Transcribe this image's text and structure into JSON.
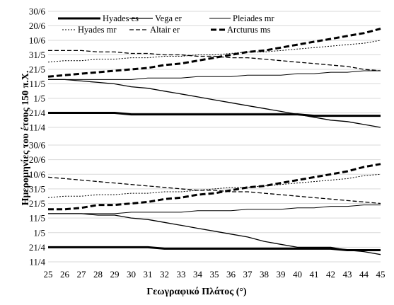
{
  "chart_data": {
    "type": "line",
    "xlabel": "Γεωγραφικό Πλάτος (°)",
    "ylabel": "Ημερομηνίες του έτους 150 π.Χ.",
    "x_ticks": [
      25,
      26,
      27,
      28,
      29,
      30,
      31,
      32,
      33,
      34,
      35,
      36,
      37,
      38,
      39,
      40,
      41,
      42,
      43,
      44,
      45
    ],
    "y_ticks": [
      "30/6",
      "20/6",
      "10/6",
      "31/5",
      "21/5",
      "11/5",
      "1/5",
      "21/4",
      "11/4"
    ],
    "ylim": [
      "11/4",
      "30/6"
    ],
    "grid": true,
    "legend_position": "top",
    "series_styles": {
      "Hyades es": {
        "width": 3.0,
        "dash": ""
      },
      "Vega er": {
        "width": 1.3,
        "dash": ""
      },
      "Pleiades mr": {
        "width": 1.0,
        "dash": ""
      },
      "Hyades mr": {
        "width": 1.0,
        "dash": "2,2"
      },
      "Altair er": {
        "width": 1.3,
        "dash": "6,3"
      },
      "Arcturus ms": {
        "width": 3.0,
        "dash": "8,4"
      }
    },
    "panels": [
      {
        "legend": [
          "Hyades es",
          "Vega er",
          "Pleiades mr",
          "Hyades mr",
          "Altair er",
          "Arcturus ms"
        ],
        "x": [
          25,
          26,
          27,
          28,
          29,
          30,
          31,
          32,
          33,
          34,
          35,
          36,
          37,
          38,
          39,
          40,
          41,
          42,
          43,
          44,
          45
        ],
        "series": [
          {
            "name": "Hyades es",
            "values": [
              "21/4",
              "21/4",
              "21/4",
              "21/4",
              "21/4",
              "20/4",
              "20/4",
              "20/4",
              "20/4",
              "20/4",
              "20/4",
              "20/4",
              "20/4",
              "20/4",
              "20/4",
              "20/4",
              "19/4",
              "19/4",
              "19/4",
              "19/4",
              "19/4"
            ]
          },
          {
            "name": "Vega er",
            "values": [
              "14/5",
              "14/5",
              "13/5",
              "12/5",
              "11/5",
              "9/5",
              "8/5",
              "6/5",
              "4/5",
              "2/5",
              "30/4",
              "28/4",
              "26/4",
              "24/4",
              "22/4",
              "20/4",
              "18/4",
              "16/4",
              "15/4",
              "13/4",
              "11/4"
            ]
          },
          {
            "name": "Pleiades mr",
            "values": [
              "14/5",
              "14/5",
              "14/5",
              "14/5",
              "14/5",
              "14/5",
              "15/5",
              "15/5",
              "15/5",
              "16/5",
              "16/5",
              "16/5",
              "17/5",
              "17/5",
              "17/5",
              "18/5",
              "18/5",
              "19/5",
              "19/5",
              "20/5",
              "20/5"
            ]
          },
          {
            "name": "Hyades mr",
            "values": [
              "26/5",
              "27/5",
              "27/5",
              "28/5",
              "28/5",
              "29/5",
              "29/5",
              "30/5",
              "30/5",
              "31/5",
              "31/5",
              "1/6",
              "2/6",
              "2/6",
              "3/6",
              "4/6",
              "5/6",
              "6/6",
              "7/6",
              "8/6",
              "10/6"
            ]
          },
          {
            "name": "Altair er",
            "values": [
              "3/6",
              "3/6",
              "3/6",
              "2/6",
              "2/6",
              "1/6",
              "1/6",
              "31/5",
              "31/5",
              "30/5",
              "30/5",
              "29/5",
              "29/5",
              "28/5",
              "27/5",
              "26/5",
              "25/5",
              "24/5",
              "23/5",
              "21/5",
              "20/5"
            ]
          },
          {
            "name": "Arcturus ms",
            "values": [
              "16/5",
              "17/5",
              "18/5",
              "19/5",
              "20/5",
              "21/5",
              "22/5",
              "24/5",
              "25/5",
              "27/5",
              "29/5",
              "31/5",
              "2/6",
              "3/6",
              "5/6",
              "7/6",
              "9/6",
              "11/6",
              "13/6",
              "15/6",
              "18/6"
            ]
          }
        ]
      },
      {
        "x": [
          25,
          26,
          27,
          28,
          29,
          30,
          31,
          32,
          33,
          34,
          35,
          36,
          37,
          38,
          39,
          40,
          41,
          42,
          43,
          44,
          45
        ],
        "series": [
          {
            "name": "Hyades es",
            "values": [
              "21/4",
              "21/4",
              "21/4",
              "21/4",
              "21/4",
              "21/4",
              "21/4",
              "20/4",
              "20/4",
              "20/4",
              "20/4",
              "20/4",
              "20/4",
              "20/4",
              "20/4",
              "20/4",
              "20/4",
              "20/4",
              "19/4",
              "19/4",
              "19/4"
            ]
          },
          {
            "name": "Vega er",
            "values": [
              "14/5",
              "14/5",
              "14/5",
              "13/5",
              "13/5",
              "11/5",
              "10/5",
              "8/5",
              "6/5",
              "4/5",
              "2/5",
              "30/4",
              "28/4",
              "25/4",
              "23/4",
              "21/4",
              "21/4",
              "21/4",
              "19/4",
              "18/4",
              "16/4"
            ]
          },
          {
            "name": "Pleiades mr",
            "values": [
              "14/5",
              "14/5",
              "14/5",
              "14/5",
              "14/5",
              "15/5",
              "15/5",
              "15/5",
              "15/5",
              "16/5",
              "16/5",
              "16/5",
              "17/5",
              "17/5",
              "17/5",
              "18/5",
              "18/5",
              "19/5",
              "19/5",
              "20/5",
              "20/5"
            ]
          },
          {
            "name": "Hyades mr",
            "values": [
              "25/5",
              "26/5",
              "26/5",
              "27/5",
              "27/5",
              "28/5",
              "28/5",
              "29/5",
              "29/5",
              "30/5",
              "31/5",
              "1/6",
              "1/6",
              "2/6",
              "3/6",
              "4/6",
              "5/6",
              "6/6",
              "7/6",
              "9/6",
              "10/6"
            ]
          },
          {
            "name": "Altair er",
            "values": [
              "8/6",
              "7/6",
              "6/6",
              "5/6",
              "4/6",
              "3/6",
              "2/6",
              "1/6",
              "31/5",
              "30/5",
              "30/5",
              "29/5",
              "29/5",
              "28/5",
              "27/5",
              "26/5",
              "25/5",
              "24/5",
              "23/5",
              "22/5",
              "21/5"
            ]
          },
          {
            "name": "Arcturus ms",
            "values": [
              "17/5",
              "17/5",
              "18/5",
              "20/5",
              "20/5",
              "21/5",
              "22/5",
              "24/5",
              "25/5",
              "27/5",
              "28/5",
              "30/5",
              "1/6",
              "2/6",
              "4/6",
              "6/6",
              "8/6",
              "10/6",
              "12/6",
              "15/6",
              "17/6"
            ]
          }
        ]
      }
    ]
  }
}
